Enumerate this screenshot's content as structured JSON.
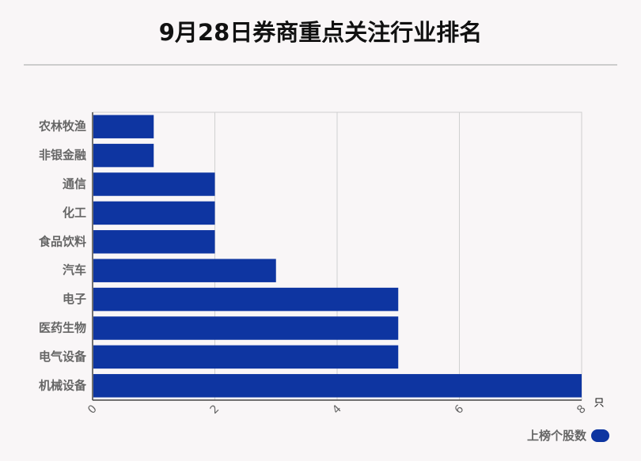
{
  "title": "9月28日券商重点关注行业排名",
  "legend": {
    "label": "上榜个股数",
    "color": "#0e35a1"
  },
  "chart_data": {
    "type": "bar",
    "orientation": "horizontal",
    "title": "9月28日券商重点关注行业排名",
    "categories": [
      "农林牧渔",
      "非银金融",
      "通信",
      "化工",
      "食品饮料",
      "汽车",
      "电子",
      "医药生物",
      "电气设备",
      "机械设备"
    ],
    "series": [
      {
        "name": "上榜个股数",
        "values": [
          1,
          1,
          2,
          2,
          2,
          3,
          5,
          5,
          5,
          8
        ],
        "color": "#0e35a1"
      }
    ],
    "x_ticks": [
      "0",
      "2",
      "4",
      "6",
      "8"
    ],
    "xlim": [
      0,
      8
    ],
    "x_unit": "只",
    "grid": "vertical",
    "legend_position": "bottom-right"
  }
}
